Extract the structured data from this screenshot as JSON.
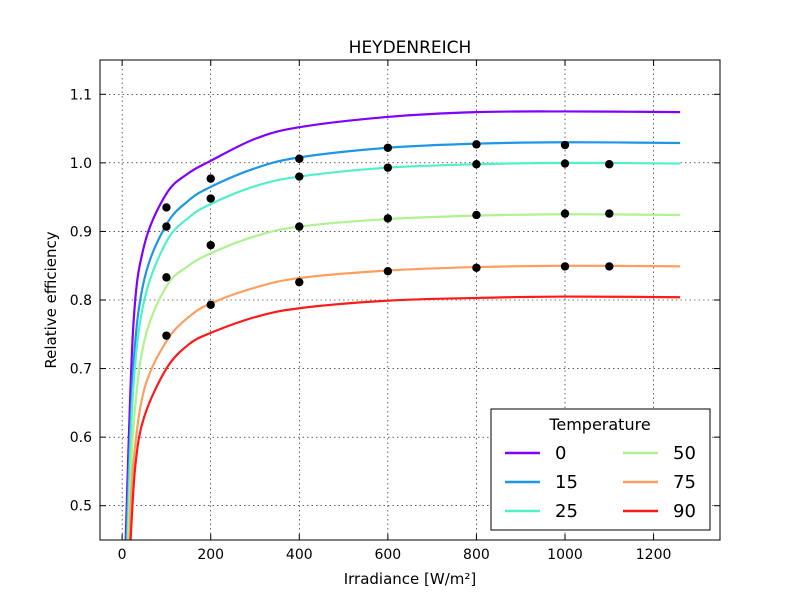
{
  "chart_data": {
    "type": "line",
    "title": "HEYDENREICH",
    "xlabel": "Irradiance [W/m²]",
    "ylabel": "Relative efficiency",
    "xlim": [
      -50,
      1350
    ],
    "ylim": [
      0.45,
      1.15
    ],
    "xticks": [
      0,
      200,
      400,
      600,
      800,
      1000,
      1200
    ],
    "yticks": [
      0.5,
      0.6,
      0.7,
      0.8,
      0.9,
      1.0,
      1.1
    ],
    "grid": true,
    "legend": {
      "title": "Temperature",
      "placement": "lower-right",
      "columns": 2
    },
    "series": [
      {
        "name": "0",
        "color": "#8000ff",
        "plateau": 1.075,
        "curve_x": [
          8,
          25,
          50,
          100,
          150,
          200,
          300,
          400,
          600,
          800,
          1000,
          1260
        ],
        "curve_y": [
          0.45,
          0.76,
          0.88,
          0.955,
          0.985,
          1.003,
          1.035,
          1.052,
          1.067,
          1.074,
          1.075,
          1.074
        ]
      },
      {
        "name": "15",
        "color": "#1e96e6",
        "plateau": 1.03,
        "curve_x": [
          10,
          25,
          50,
          100,
          150,
          200,
          300,
          400,
          600,
          800,
          1000,
          1260
        ],
        "curve_y": [
          0.45,
          0.7,
          0.83,
          0.91,
          0.945,
          0.965,
          0.992,
          1.008,
          1.022,
          1.028,
          1.03,
          1.029
        ]
      },
      {
        "name": "25",
        "color": "#50f0c8",
        "plateau": 1.0,
        "curve_x": [
          12,
          25,
          50,
          100,
          150,
          200,
          300,
          400,
          600,
          800,
          1000,
          1260
        ],
        "curve_y": [
          0.45,
          0.67,
          0.8,
          0.885,
          0.92,
          0.94,
          0.966,
          0.98,
          0.993,
          0.998,
          1.0,
          0.999
        ]
      },
      {
        "name": "50",
        "color": "#b0f290",
        "plateau": 0.925,
        "curve_x": [
          14,
          25,
          50,
          100,
          150,
          200,
          300,
          400,
          600,
          800,
          1000,
          1260
        ],
        "curve_y": [
          0.45,
          0.61,
          0.74,
          0.82,
          0.85,
          0.868,
          0.893,
          0.907,
          0.918,
          0.923,
          0.925,
          0.924
        ]
      },
      {
        "name": "75",
        "color": "#ff9e5e",
        "plateau": 0.85,
        "curve_x": [
          17,
          25,
          50,
          100,
          150,
          200,
          300,
          400,
          600,
          800,
          1000,
          1260
        ],
        "curve_y": [
          0.45,
          0.56,
          0.67,
          0.74,
          0.775,
          0.795,
          0.818,
          0.832,
          0.843,
          0.848,
          0.85,
          0.849
        ]
      },
      {
        "name": "90",
        "color": "#ff1a1a",
        "plateau": 0.805,
        "curve_x": [
          19,
          30,
          50,
          100,
          150,
          200,
          300,
          400,
          600,
          800,
          1000,
          1260
        ],
        "curve_y": [
          0.45,
          0.56,
          0.63,
          0.7,
          0.735,
          0.752,
          0.775,
          0.788,
          0.799,
          0.803,
          0.805,
          0.804
        ]
      }
    ],
    "measured_points": [
      {
        "x": 100,
        "y": 0.935
      },
      {
        "x": 100,
        "y": 0.907
      },
      {
        "x": 100,
        "y": 0.833
      },
      {
        "x": 100,
        "y": 0.748
      },
      {
        "x": 200,
        "y": 0.977
      },
      {
        "x": 200,
        "y": 0.948
      },
      {
        "x": 200,
        "y": 0.88
      },
      {
        "x": 200,
        "y": 0.793
      },
      {
        "x": 400,
        "y": 1.006
      },
      {
        "x": 400,
        "y": 0.98
      },
      {
        "x": 400,
        "y": 0.907
      },
      {
        "x": 400,
        "y": 0.826
      },
      {
        "x": 600,
        "y": 1.022
      },
      {
        "x": 600,
        "y": 0.993
      },
      {
        "x": 600,
        "y": 0.919
      },
      {
        "x": 600,
        "y": 0.842
      },
      {
        "x": 800,
        "y": 1.027
      },
      {
        "x": 800,
        "y": 0.998
      },
      {
        "x": 800,
        "y": 0.924
      },
      {
        "x": 800,
        "y": 0.847
      },
      {
        "x": 1000,
        "y": 1.026
      },
      {
        "x": 1000,
        "y": 0.999
      },
      {
        "x": 1000,
        "y": 0.926
      },
      {
        "x": 1000,
        "y": 0.849
      },
      {
        "x": 1100,
        "y": 0.998
      },
      {
        "x": 1100,
        "y": 0.926
      },
      {
        "x": 1100,
        "y": 0.849
      }
    ],
    "marker_color": "#000000"
  }
}
